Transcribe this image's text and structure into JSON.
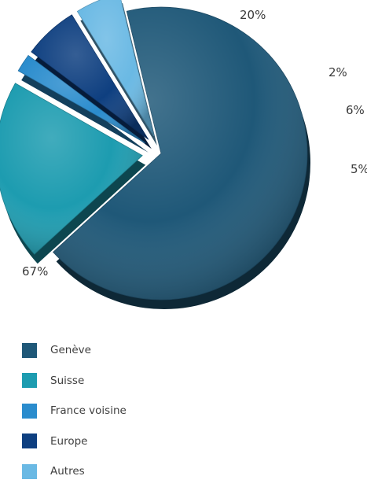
{
  "chart_data": {
    "type": "pie",
    "title": "",
    "style": "3d-exploded",
    "categories": [
      "Genève",
      "Suisse",
      "France voisine",
      "Europe",
      "Autres"
    ],
    "values": [
      67,
      20,
      2,
      6,
      5
    ],
    "data_labels": [
      "67%",
      "20%",
      "2%",
      "6%",
      "5%"
    ],
    "legend": {
      "position": "bottom-left",
      "entries": [
        "Genève",
        "Suisse",
        "France voisine",
        "Europe",
        "Autres"
      ]
    },
    "colors": [
      "#1f5878",
      "#1d9cb0",
      "#2a8ccd",
      "#0e3f80",
      "#6ab9e4"
    ]
  }
}
